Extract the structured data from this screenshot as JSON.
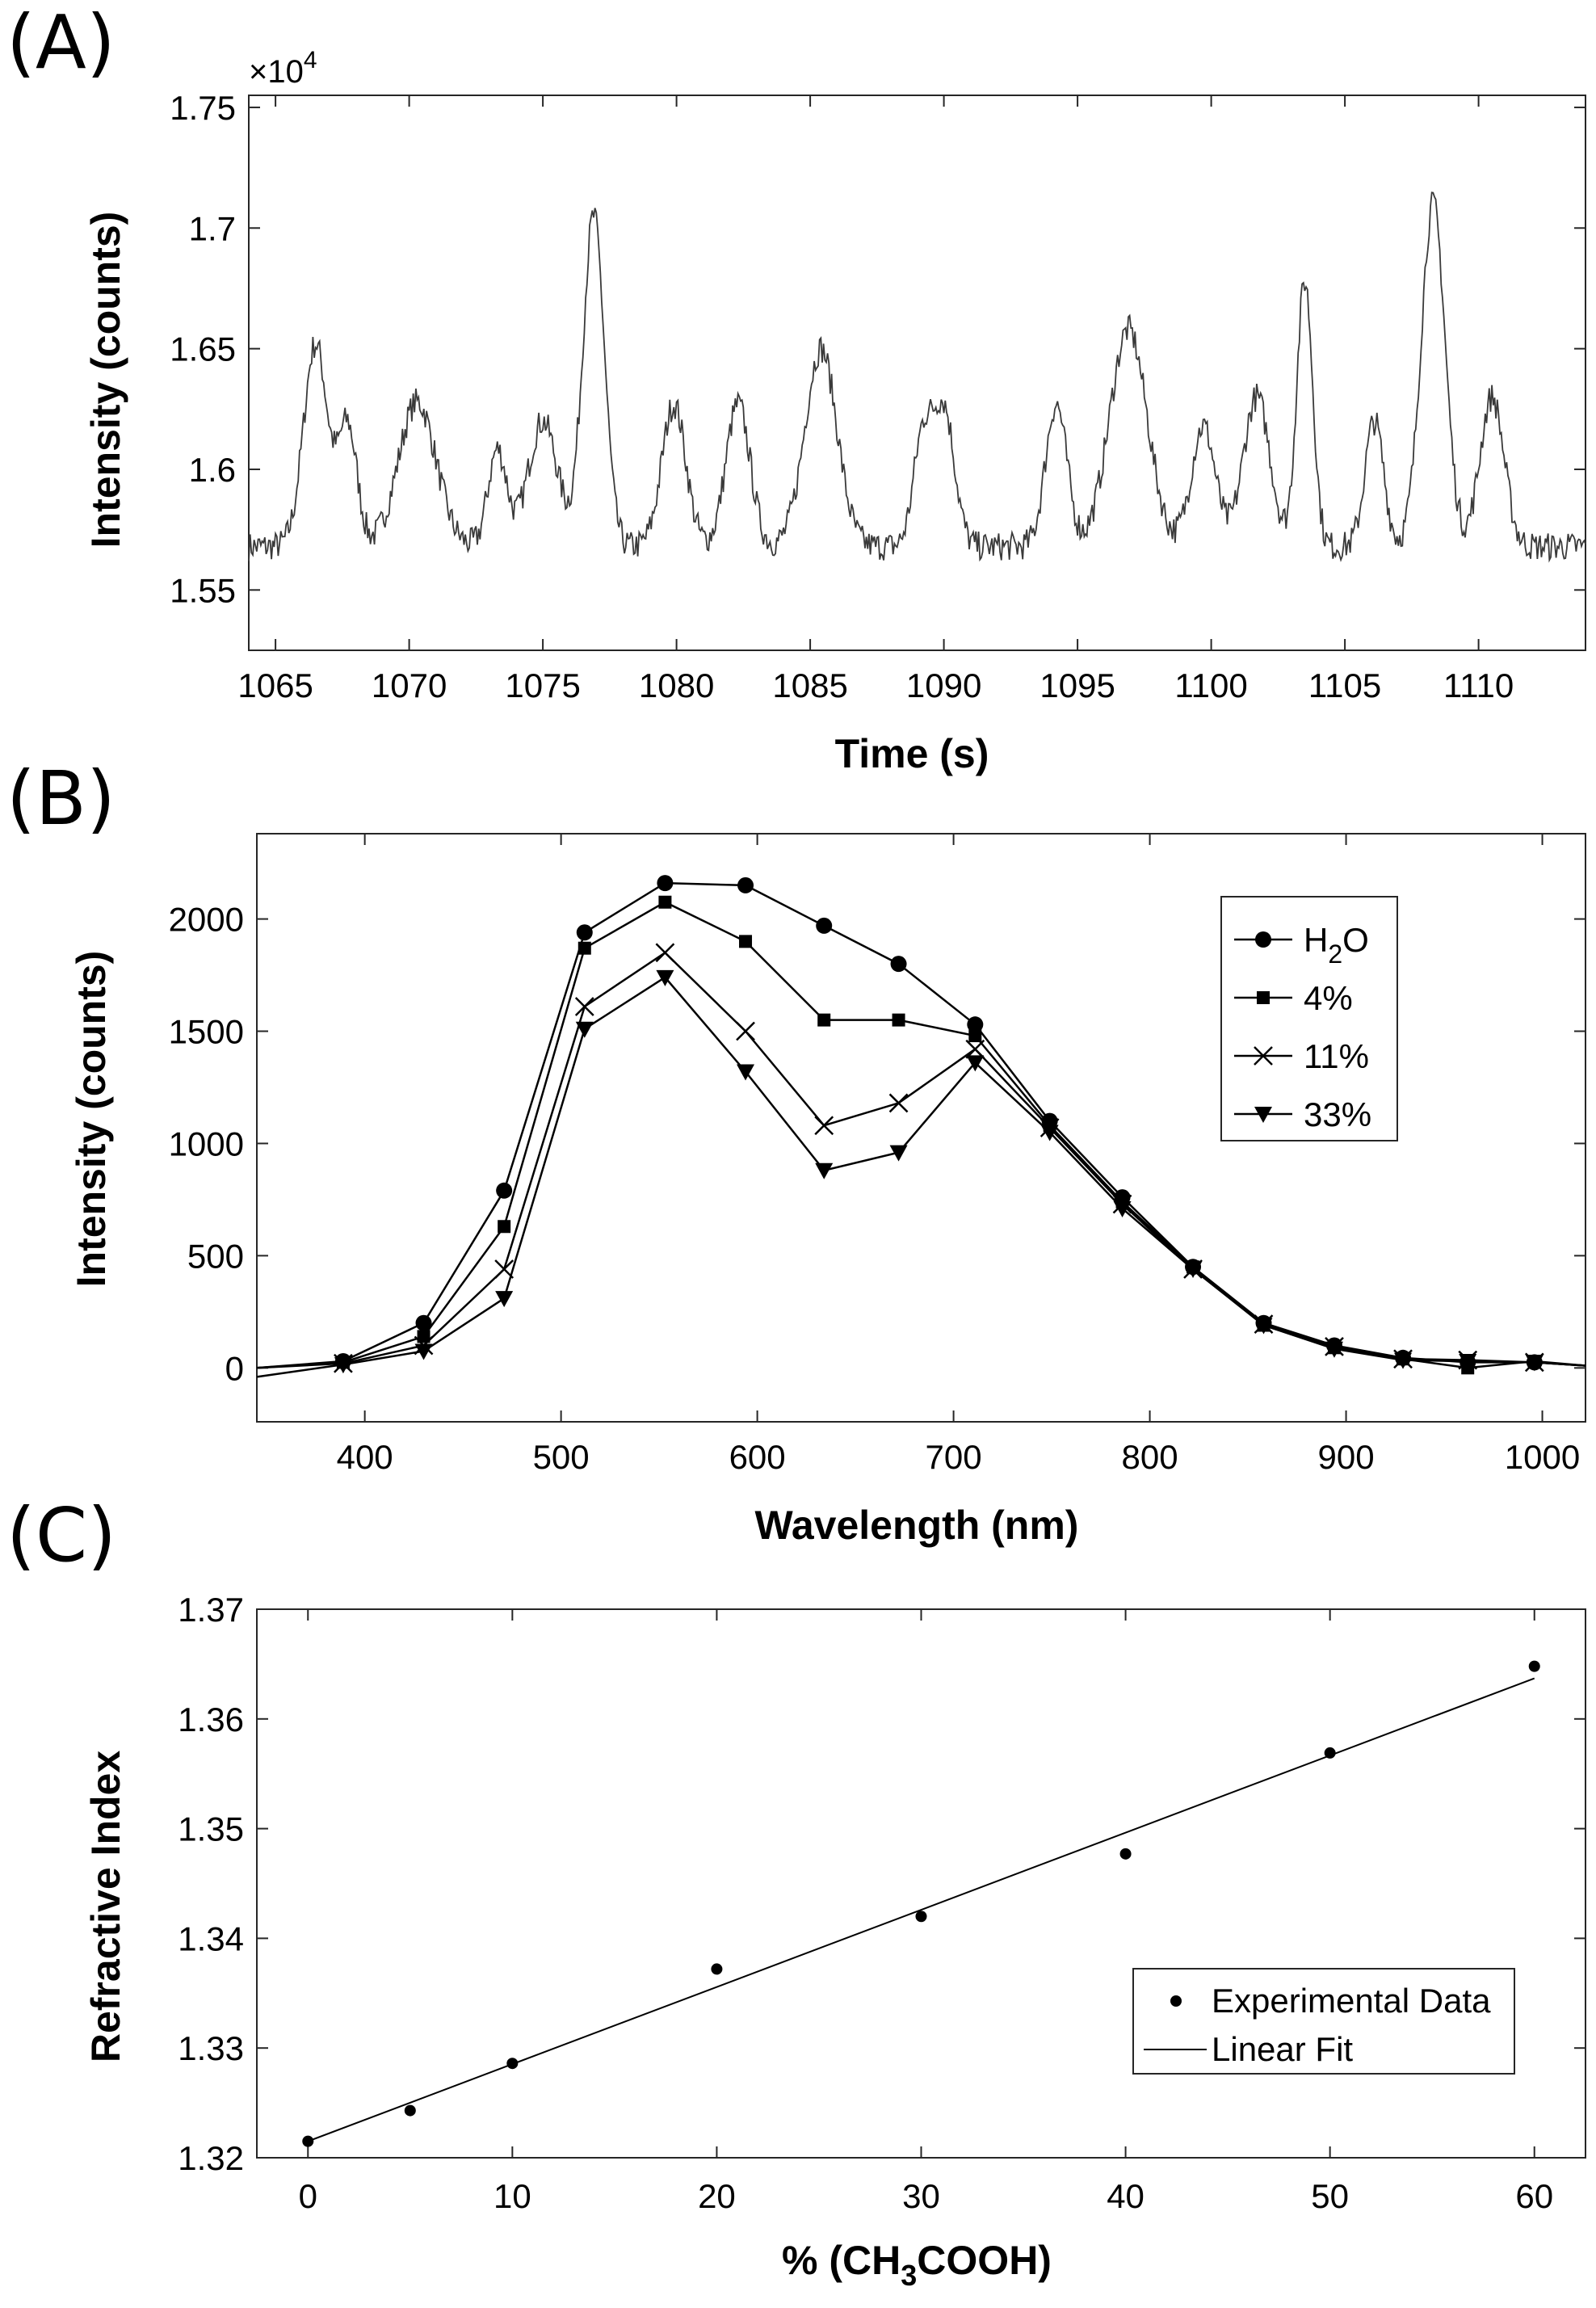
{
  "chart_data": [
    {
      "panel_label": "(A)",
      "type": "line",
      "xlabel": "Time (s)",
      "ylabel": "Intensity (counts)",
      "y_multiplier_text": "×10",
      "y_multiplier_exp": "4",
      "xlim": [
        1064,
        1114
      ],
      "ylim": [
        1.525,
        1.755
      ],
      "xticks": [
        1065,
        1070,
        1075,
        1080,
        1085,
        1090,
        1095,
        1100,
        1105,
        1110
      ],
      "yticks": [
        1.55,
        1.6,
        1.65,
        1.7,
        1.75
      ],
      "ytick_labels": [
        "1.55",
        "1.6",
        "1.65",
        "1.7",
        "1.75"
      ],
      "grid": false,
      "baseline": 1.568,
      "peaks": [
        {
          "t": 1066.5,
          "h": 1.652,
          "w": 0.45
        },
        {
          "t": 1067.7,
          "h": 1.618,
          "w": 0.35
        },
        {
          "t": 1070.3,
          "h": 1.628,
          "w": 0.7
        },
        {
          "t": 1073.3,
          "h": 1.608,
          "w": 0.35
        },
        {
          "t": 1075.0,
          "h": 1.62,
          "w": 0.55
        },
        {
          "t": 1076.9,
          "h": 1.705,
          "w": 0.4
        },
        {
          "t": 1079.9,
          "h": 1.627,
          "w": 0.45
        },
        {
          "t": 1082.3,
          "h": 1.627,
          "w": 0.45
        },
        {
          "t": 1085.4,
          "h": 1.65,
          "w": 0.6
        },
        {
          "t": 1089.2,
          "h": 1.612,
          "w": 0.35
        },
        {
          "t": 1090.0,
          "h": 1.625,
          "w": 0.4
        },
        {
          "t": 1094.2,
          "h": 1.627,
          "w": 0.4
        },
        {
          "t": 1096.9,
          "h": 1.658,
          "w": 0.7
        },
        {
          "t": 1099.7,
          "h": 1.618,
          "w": 0.45
        },
        {
          "t": 1101.7,
          "h": 1.63,
          "w": 0.5
        },
        {
          "t": 1103.5,
          "h": 1.678,
          "w": 0.3
        },
        {
          "t": 1106.1,
          "h": 1.62,
          "w": 0.35
        },
        {
          "t": 1108.3,
          "h": 1.71,
          "w": 0.45
        },
        {
          "t": 1110.5,
          "h": 1.63,
          "w": 0.45
        }
      ]
    },
    {
      "panel_label": "(B)",
      "type": "line",
      "xlabel": "Wavelength (nm)",
      "ylabel": "Intensity (counts)",
      "xlim": [
        345,
        1022
      ],
      "ylim": [
        -240,
        2380
      ],
      "xticks": [
        400,
        500,
        600,
        700,
        800,
        900,
        1000
      ],
      "yticks": [
        0,
        500,
        1000,
        1500,
        2000
      ],
      "grid": false,
      "legend_position": "top-right",
      "x": [
        345,
        389,
        430,
        471,
        512,
        553,
        594,
        634,
        672,
        711,
        749,
        786,
        822,
        858,
        894,
        929,
        962,
        996,
        1022
      ],
      "series": [
        {
          "name": "H2O",
          "legend_main": "H",
          "legend_sub": "2",
          "legend_tail": "O",
          "marker": "circle",
          "values": [
            0,
            30,
            200,
            790,
            1940,
            2160,
            2150,
            1970,
            1800,
            1530,
            1100,
            760,
            450,
            200,
            100,
            45,
            25,
            25,
            10
          ]
        },
        {
          "name": "4%",
          "legend_main": "4%",
          "legend_sub": "",
          "legend_tail": "",
          "marker": "square",
          "values": [
            0,
            25,
            140,
            630,
            1870,
            2075,
            1900,
            1550,
            1550,
            1480,
            1080,
            740,
            450,
            190,
            90,
            40,
            0,
            30,
            10
          ]
        },
        {
          "name": "11%",
          "legend_main": "11%",
          "legend_sub": "",
          "legend_tail": "",
          "marker": "x",
          "values": [
            0,
            20,
            100,
            440,
            1610,
            1850,
            1500,
            1080,
            1180,
            1420,
            1070,
            730,
            440,
            195,
            95,
            40,
            35,
            25,
            10
          ]
        },
        {
          "name": "33%",
          "legend_main": "33%",
          "legend_sub": "",
          "legend_tail": "",
          "marker": "triangle-down",
          "values": [
            -40,
            15,
            75,
            310,
            1510,
            1740,
            1320,
            880,
            960,
            1360,
            1050,
            710,
            440,
            190,
            85,
            35,
            30,
            25,
            10
          ]
        }
      ]
    },
    {
      "panel_label": "(C)",
      "type": "scatter",
      "xlabel_main": "% (CH",
      "xlabel_sub": "3",
      "xlabel_tail": "COOH)",
      "ylabel": "Refractive Index",
      "xlim": [
        -2.5,
        62.5
      ],
      "ylim": [
        1.32,
        1.37
      ],
      "xticks": [
        0,
        10,
        20,
        30,
        40,
        50,
        60
      ],
      "yticks": [
        1.32,
        1.33,
        1.34,
        1.35,
        1.36,
        1.37
      ],
      "ytick_labels": [
        "1.32",
        "1.33",
        "1.34",
        "1.35",
        "1.36",
        "1.37"
      ],
      "grid": false,
      "legend_position": "bottom-right",
      "series": [
        {
          "name": "Experimental Data",
          "style": "points",
          "x": [
            0,
            5,
            10,
            20,
            30,
            40,
            50,
            60
          ],
          "y": [
            1.3215,
            1.3243,
            1.3286,
            1.3372,
            1.342,
            1.3477,
            1.3569,
            1.3648
          ]
        },
        {
          "name": "Linear Fit",
          "style": "line",
          "x": [
            0,
            60
          ],
          "y": [
            1.3215,
            1.3637
          ]
        }
      ]
    }
  ]
}
